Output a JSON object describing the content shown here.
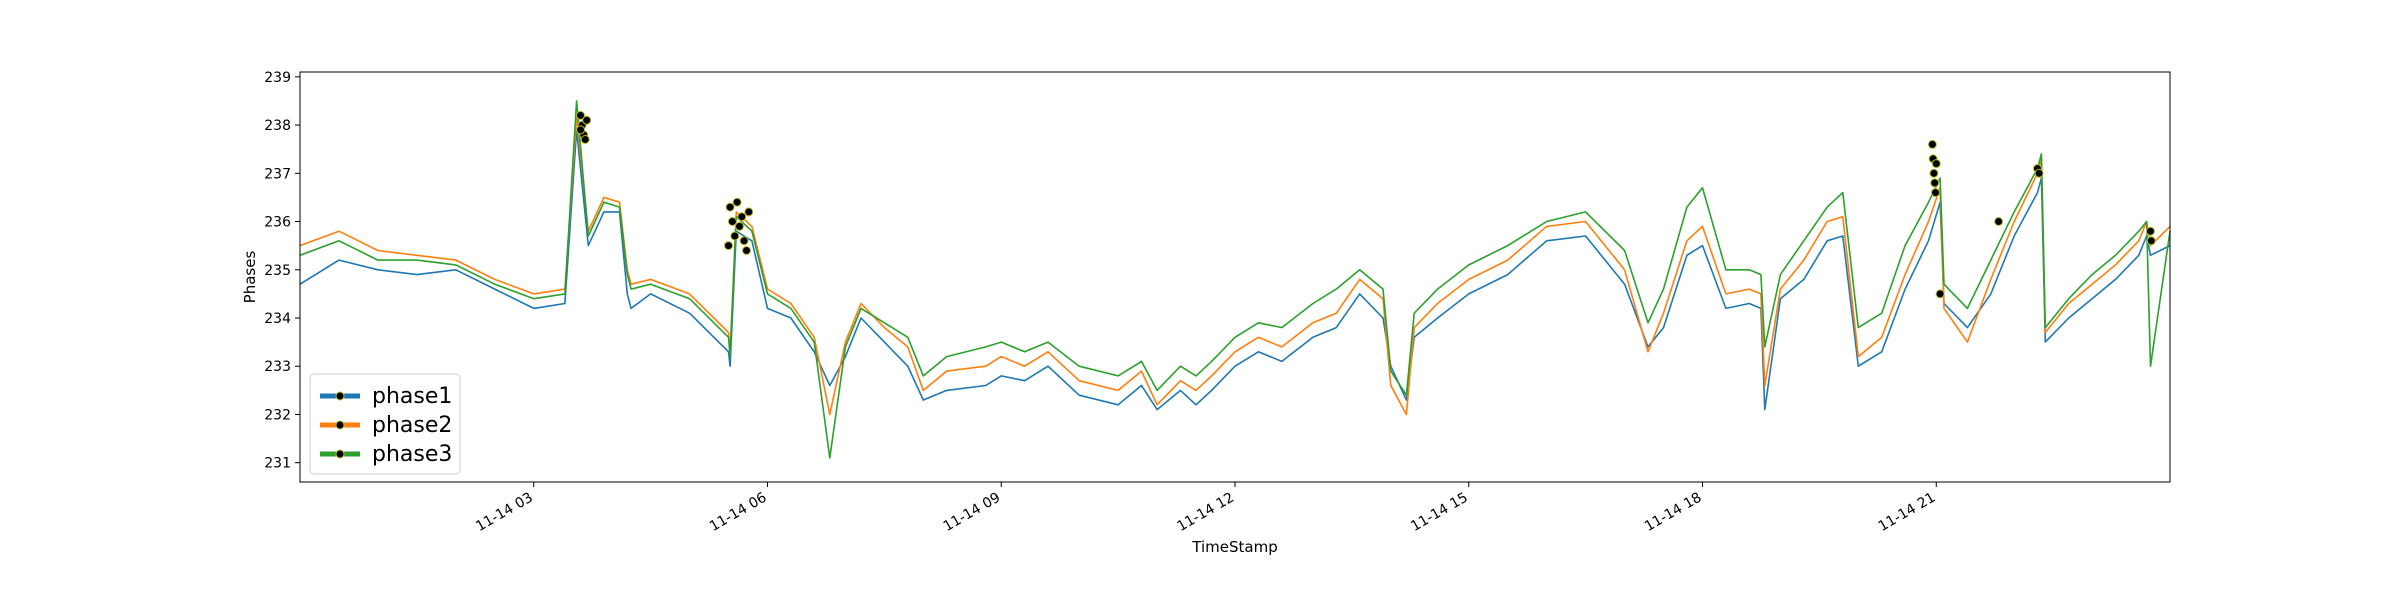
{
  "chart_data": {
    "type": "line",
    "title": "",
    "xlabel": "TimeStamp",
    "ylabel": "Phases",
    "xlim": [
      0,
      24
    ],
    "ylim": [
      230.6,
      239.1
    ],
    "yticks": [
      231,
      232,
      233,
      234,
      235,
      236,
      237,
      238,
      239
    ],
    "xticks": [
      {
        "x": 3,
        "label": "11-14 03"
      },
      {
        "x": 6,
        "label": "11-14 06"
      },
      {
        "x": 9,
        "label": "11-14 09"
      },
      {
        "x": 12,
        "label": "11-14 12"
      },
      {
        "x": 15,
        "label": "11-14 15"
      },
      {
        "x": 18,
        "label": "11-14 18"
      },
      {
        "x": 21,
        "label": "11-14 21"
      }
    ],
    "legend_position": "lower-left",
    "series": [
      {
        "name": "phase1",
        "color": "#1f77b4",
        "x": [
          0,
          0.5,
          1,
          1.5,
          2,
          2.5,
          3,
          3.4,
          3.55,
          3.7,
          3.9,
          4.1,
          4.2,
          4.25,
          4.5,
          5,
          5.5,
          5.52,
          5.6,
          5.8,
          6,
          6.3,
          6.6,
          6.8,
          7,
          7.2,
          7.5,
          7.8,
          8,
          8.3,
          8.8,
          9,
          9.3,
          9.6,
          10,
          10.5,
          10.8,
          11,
          11.3,
          11.5,
          11.7,
          12,
          12.3,
          12.6,
          13,
          13.3,
          13.6,
          13.9,
          14,
          14.2,
          14.3,
          14.6,
          15,
          15.5,
          16,
          16.5,
          17,
          17.3,
          17.5,
          17.8,
          18,
          18.3,
          18.6,
          18.75,
          18.8,
          19,
          19.3,
          19.6,
          19.8,
          20,
          20.3,
          20.6,
          20.9,
          21.05,
          21.1,
          21.4,
          21.7,
          22,
          22.3,
          22.35,
          22.4,
          22.7,
          23,
          23.3,
          23.6,
          23.7,
          23.75,
          24
        ],
        "y": [
          234.7,
          235.2,
          235.0,
          234.9,
          235.0,
          234.6,
          234.2,
          234.3,
          237.9,
          235.5,
          236.2,
          236.2,
          234.5,
          234.2,
          234.5,
          234.1,
          233.3,
          233.0,
          235.8,
          235.6,
          234.2,
          234.0,
          233.3,
          232.6,
          233.2,
          234.0,
          233.5,
          233.0,
          232.3,
          232.5,
          232.6,
          232.8,
          232.7,
          233.0,
          232.4,
          232.2,
          232.6,
          232.1,
          232.5,
          232.2,
          232.5,
          233.0,
          233.3,
          233.1,
          233.6,
          233.8,
          234.5,
          234.0,
          233.0,
          232.3,
          233.6,
          234.0,
          234.5,
          234.9,
          235.6,
          235.7,
          234.7,
          233.4,
          233.8,
          235.3,
          235.5,
          234.2,
          234.3,
          234.2,
          232.1,
          234.4,
          234.8,
          235.6,
          235.7,
          233.0,
          233.3,
          234.6,
          235.6,
          236.4,
          234.3,
          233.8,
          234.5,
          235.7,
          236.6,
          236.9,
          233.5,
          234.0,
          234.4,
          234.8,
          235.3,
          235.7,
          235.3,
          235.5
        ]
      },
      {
        "name": "phase2",
        "color": "#ff7f0e",
        "x": [
          0,
          0.5,
          1,
          1.5,
          2,
          2.5,
          3,
          3.4,
          3.55,
          3.7,
          3.9,
          4.1,
          4.2,
          4.25,
          4.5,
          5,
          5.5,
          5.52,
          5.6,
          5.8,
          6,
          6.3,
          6.6,
          6.8,
          7,
          7.2,
          7.5,
          7.8,
          8,
          8.3,
          8.8,
          9,
          9.3,
          9.6,
          10,
          10.5,
          10.8,
          11,
          11.3,
          11.5,
          11.7,
          12,
          12.3,
          12.6,
          13,
          13.3,
          13.6,
          13.9,
          14,
          14.2,
          14.3,
          14.6,
          15,
          15.5,
          16,
          16.5,
          17,
          17.3,
          17.5,
          17.8,
          18,
          18.3,
          18.6,
          18.75,
          18.8,
          19,
          19.3,
          19.6,
          19.8,
          20,
          20.3,
          20.6,
          20.9,
          21.05,
          21.1,
          21.4,
          21.7,
          22,
          22.3,
          22.35,
          22.4,
          22.7,
          23,
          23.3,
          23.6,
          23.7,
          23.75,
          24
        ],
        "y": [
          235.5,
          235.8,
          235.4,
          235.3,
          235.2,
          234.8,
          234.5,
          234.6,
          238.2,
          235.8,
          236.5,
          236.4,
          235.0,
          234.7,
          234.8,
          234.5,
          233.7,
          233.3,
          236.2,
          235.9,
          234.6,
          234.3,
          233.6,
          232.0,
          233.5,
          234.3,
          233.8,
          233.4,
          232.5,
          232.9,
          233.0,
          233.2,
          233.0,
          233.3,
          232.7,
          232.5,
          232.9,
          232.2,
          232.7,
          232.5,
          232.8,
          233.3,
          233.6,
          233.4,
          233.9,
          234.1,
          234.8,
          234.4,
          232.6,
          232.0,
          233.8,
          234.3,
          234.8,
          235.2,
          235.9,
          236.0,
          235.0,
          233.3,
          234.1,
          235.6,
          235.9,
          234.5,
          234.6,
          234.5,
          232.6,
          234.6,
          235.2,
          236.0,
          236.1,
          233.2,
          233.6,
          234.9,
          236.0,
          236.7,
          234.2,
          233.5,
          234.8,
          236.0,
          237.0,
          237.3,
          233.7,
          234.3,
          234.7,
          235.1,
          235.6,
          236.0,
          235.5,
          235.9
        ]
      },
      {
        "name": "phase3",
        "color": "#2ca02c",
        "x": [
          0,
          0.5,
          1,
          1.5,
          2,
          2.5,
          3,
          3.4,
          3.55,
          3.7,
          3.9,
          4.1,
          4.2,
          4.25,
          4.5,
          5,
          5.5,
          5.52,
          5.6,
          5.8,
          6,
          6.3,
          6.6,
          6.8,
          7,
          7.2,
          7.5,
          7.8,
          8,
          8.3,
          8.8,
          9,
          9.3,
          9.6,
          10,
          10.5,
          10.8,
          11,
          11.3,
          11.5,
          11.7,
          12,
          12.3,
          12.6,
          13,
          13.3,
          13.6,
          13.9,
          14,
          14.2,
          14.3,
          14.6,
          15,
          15.5,
          16,
          16.5,
          17,
          17.3,
          17.5,
          17.8,
          18,
          18.3,
          18.6,
          18.75,
          18.8,
          19,
          19.3,
          19.6,
          19.8,
          20,
          20.3,
          20.6,
          20.9,
          21.05,
          21.1,
          21.4,
          21.7,
          22,
          22.3,
          22.35,
          22.4,
          22.7,
          23,
          23.3,
          23.6,
          23.7,
          23.75,
          24
        ],
        "y": [
          235.3,
          235.6,
          235.2,
          235.2,
          235.1,
          234.7,
          234.4,
          234.5,
          238.5,
          235.7,
          236.4,
          236.3,
          234.9,
          234.6,
          234.7,
          234.4,
          233.6,
          233.2,
          236.1,
          235.8,
          234.5,
          234.2,
          233.5,
          231.1,
          233.4,
          234.2,
          233.9,
          233.6,
          232.8,
          233.2,
          233.4,
          233.5,
          233.3,
          233.5,
          233.0,
          232.8,
          233.1,
          232.5,
          233.0,
          232.8,
          233.1,
          233.6,
          233.9,
          233.8,
          234.3,
          234.6,
          235.0,
          234.6,
          232.9,
          232.4,
          234.1,
          234.6,
          235.1,
          235.5,
          236.0,
          236.2,
          235.4,
          233.9,
          234.6,
          236.3,
          236.7,
          235.0,
          235.0,
          234.9,
          233.4,
          234.9,
          235.6,
          236.3,
          236.6,
          233.8,
          234.1,
          235.5,
          236.4,
          236.9,
          234.7,
          234.2,
          235.2,
          236.2,
          237.1,
          237.4,
          233.8,
          234.4,
          234.9,
          235.3,
          235.8,
          236.0,
          233.0,
          235.8
        ]
      }
    ],
    "markers": [
      {
        "x": 3.6,
        "y": 238.2
      },
      {
        "x": 3.62,
        "y": 238.0
      },
      {
        "x": 3.64,
        "y": 237.8
      },
      {
        "x": 3.66,
        "y": 237.7
      },
      {
        "x": 3.68,
        "y": 238.1
      },
      {
        "x": 3.6,
        "y": 237.9
      },
      {
        "x": 5.52,
        "y": 236.3
      },
      {
        "x": 5.55,
        "y": 236.0
      },
      {
        "x": 5.58,
        "y": 235.7
      },
      {
        "x": 5.61,
        "y": 236.4
      },
      {
        "x": 5.64,
        "y": 235.9
      },
      {
        "x": 5.67,
        "y": 236.1
      },
      {
        "x": 5.7,
        "y": 235.6
      },
      {
        "x": 5.73,
        "y": 235.4
      },
      {
        "x": 5.5,
        "y": 235.5
      },
      {
        "x": 5.76,
        "y": 236.2
      },
      {
        "x": 20.95,
        "y": 237.6
      },
      {
        "x": 20.96,
        "y": 237.3
      },
      {
        "x": 20.97,
        "y": 237.0
      },
      {
        "x": 20.98,
        "y": 236.8
      },
      {
        "x": 20.99,
        "y": 236.6
      },
      {
        "x": 21.0,
        "y": 237.2
      },
      {
        "x": 21.05,
        "y": 234.5
      },
      {
        "x": 21.8,
        "y": 236.0
      },
      {
        "x": 22.3,
        "y": 237.1
      },
      {
        "x": 22.32,
        "y": 237.0
      },
      {
        "x": 23.75,
        "y": 235.8
      },
      {
        "x": 23.76,
        "y": 235.6
      }
    ]
  }
}
